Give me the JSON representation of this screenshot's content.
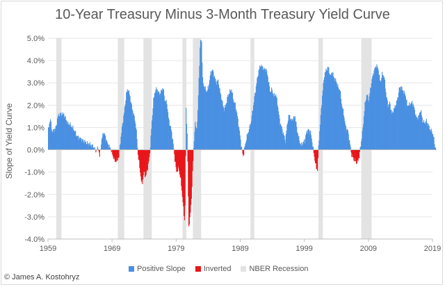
{
  "title": "10-Year Treasury Minus 3-Month Treasury Yield Curve",
  "copyright": "© James A. Kostohryz",
  "chart_data": {
    "type": "bar",
    "title": "10-Year Treasury Minus 3-Month Treasury Yield Curve",
    "xlabel": "",
    "ylabel": "Slope of Yield Curve",
    "xlim": [
      1959,
      2019
    ],
    "ylim": [
      -4.0,
      5.0
    ],
    "x_ticks": [
      "1959",
      "1969",
      "1979",
      "1989",
      "1999",
      "2009",
      "2019"
    ],
    "y_ticks": [
      "5.0%",
      "4.0%",
      "3.0%",
      "2.0%",
      "1.0%",
      "0.0%",
      "-1.0%",
      "-2.0%",
      "-3.0%",
      "-4.0%"
    ],
    "y_tick_values": [
      5,
      4,
      3,
      2,
      1,
      0,
      -1,
      -2,
      -3,
      -4
    ],
    "grid": true,
    "legend_position": "bottom",
    "colors": {
      "positive": "#4a90e2",
      "inverted": "#e8161b",
      "recession": "#e3e3e3"
    },
    "legend": [
      {
        "label": "Positive Slope",
        "series": "positive"
      },
      {
        "label": "Inverted",
        "series": "inverted"
      },
      {
        "label": "NBER Recession",
        "series": "recession"
      }
    ],
    "recessions": [
      [
        1960.3,
        1961.1
      ],
      [
        1969.9,
        1970.9
      ],
      [
        1973.9,
        1975.2
      ],
      [
        1980.0,
        1980.6
      ],
      [
        1981.6,
        1982.9
      ],
      [
        1990.6,
        1991.2
      ],
      [
        2001.2,
        2001.9
      ],
      [
        2007.9,
        2009.5
      ]
    ],
    "series_points": [
      [
        1959.0,
        0.9
      ],
      [
        1959.3,
        1.4
      ],
      [
        1959.6,
        0.8
      ],
      [
        1959.9,
        0.9
      ],
      [
        1960.2,
        1.0
      ],
      [
        1960.5,
        1.5
      ],
      [
        1960.8,
        1.6
      ],
      [
        1961.1,
        1.6
      ],
      [
        1961.4,
        1.6
      ],
      [
        1961.7,
        1.4
      ],
      [
        1962.0,
        1.2
      ],
      [
        1962.5,
        1.1
      ],
      [
        1963.0,
        0.9
      ],
      [
        1963.5,
        0.6
      ],
      [
        1964.0,
        0.5
      ],
      [
        1964.5,
        0.4
      ],
      [
        1965.0,
        0.3
      ],
      [
        1965.5,
        0.25
      ],
      [
        1966.0,
        0.15
      ],
      [
        1966.4,
        -0.05
      ],
      [
        1966.8,
        0.1
      ],
      [
        1967.0,
        -0.3
      ],
      [
        1967.3,
        0.4
      ],
      [
        1967.6,
        0.8
      ],
      [
        1967.9,
        0.6
      ],
      [
        1968.2,
        0.3
      ],
      [
        1968.5,
        0.15
      ],
      [
        1968.8,
        0.0
      ],
      [
        1969.1,
        -0.3
      ],
      [
        1969.4,
        -0.5
      ],
      [
        1969.7,
        -0.5
      ],
      [
        1970.0,
        -0.3
      ],
      [
        1970.3,
        0.5
      ],
      [
        1970.6,
        1.2
      ],
      [
        1970.9,
        1.8
      ],
      [
        1971.2,
        2.6
      ],
      [
        1971.5,
        2.7
      ],
      [
        1971.8,
        2.3
      ],
      [
        1972.1,
        1.8
      ],
      [
        1972.4,
        1.5
      ],
      [
        1972.7,
        1.0
      ],
      [
        1973.0,
        -0.2
      ],
      [
        1973.3,
        -0.9
      ],
      [
        1973.6,
        -1.6
      ],
      [
        1973.9,
        -1.0
      ],
      [
        1974.2,
        -1.2
      ],
      [
        1974.5,
        -0.8
      ],
      [
        1974.8,
        -0.3
      ],
      [
        1975.1,
        1.0
      ],
      [
        1975.4,
        2.2
      ],
      [
        1975.7,
        2.7
      ],
      [
        1976.0,
        2.7
      ],
      [
        1976.3,
        2.5
      ],
      [
        1976.6,
        2.6
      ],
      [
        1976.9,
        2.8
      ],
      [
        1977.2,
        2.2
      ],
      [
        1977.5,
        2.1
      ],
      [
        1977.8,
        1.3
      ],
      [
        1978.1,
        1.0
      ],
      [
        1978.4,
        0.5
      ],
      [
        1978.7,
        -0.3
      ],
      [
        1979.0,
        -1.0
      ],
      [
        1979.3,
        -0.8
      ],
      [
        1979.6,
        -1.2
      ],
      [
        1979.9,
        -2.0
      ],
      [
        1980.1,
        -2.7
      ],
      [
        1980.3,
        -3.3
      ],
      [
        1980.5,
        1.8
      ],
      [
        1980.7,
        0.5
      ],
      [
        1980.9,
        -3.5
      ],
      [
        1981.1,
        -3.0
      ],
      [
        1981.3,
        -2.4
      ],
      [
        1981.5,
        -1.0
      ],
      [
        1981.7,
        0.2
      ],
      [
        1981.9,
        1.2
      ],
      [
        1982.1,
        0.9
      ],
      [
        1982.3,
        1.4
      ],
      [
        1982.5,
        3.2
      ],
      [
        1982.7,
        4.8
      ],
      [
        1982.9,
        5.0
      ],
      [
        1983.1,
        3.0
      ],
      [
        1983.4,
        2.8
      ],
      [
        1983.7,
        2.6
      ],
      [
        1984.0,
        2.8
      ],
      [
        1984.3,
        3.4
      ],
      [
        1984.6,
        3.6
      ],
      [
        1984.9,
        3.3
      ],
      [
        1985.2,
        3.0
      ],
      [
        1985.5,
        3.1
      ],
      [
        1985.8,
        2.6
      ],
      [
        1986.1,
        2.2
      ],
      [
        1986.4,
        1.8
      ],
      [
        1986.7,
        2.0
      ],
      [
        1987.0,
        2.4
      ],
      [
        1987.3,
        2.6
      ],
      [
        1987.6,
        2.7
      ],
      [
        1987.9,
        2.2
      ],
      [
        1988.2,
        2.0
      ],
      [
        1988.5,
        1.5
      ],
      [
        1988.8,
        0.9
      ],
      [
        1989.1,
        0.2
      ],
      [
        1989.4,
        -0.3
      ],
      [
        1989.7,
        0.2
      ],
      [
        1990.0,
        0.6
      ],
      [
        1990.3,
        0.9
      ],
      [
        1990.6,
        1.2
      ],
      [
        1990.9,
        1.8
      ],
      [
        1991.2,
        2.4
      ],
      [
        1991.5,
        3.0
      ],
      [
        1991.8,
        3.5
      ],
      [
        1992.1,
        3.8
      ],
      [
        1992.4,
        3.7
      ],
      [
        1992.7,
        3.6
      ],
      [
        1993.0,
        3.6
      ],
      [
        1993.3,
        3.2
      ],
      [
        1993.6,
        2.6
      ],
      [
        1993.9,
        2.7
      ],
      [
        1994.2,
        2.4
      ],
      [
        1994.5,
        2.5
      ],
      [
        1994.8,
        2.0
      ],
      [
        1995.1,
        1.3
      ],
      [
        1995.4,
        1.0
      ],
      [
        1995.7,
        0.7
      ],
      [
        1996.0,
        0.4
      ],
      [
        1996.3,
        1.2
      ],
      [
        1996.6,
        1.6
      ],
      [
        1996.9,
        1.3
      ],
      [
        1997.2,
        1.4
      ],
      [
        1997.5,
        1.5
      ],
      [
        1997.8,
        0.9
      ],
      [
        1998.1,
        0.5
      ],
      [
        1998.4,
        0.2
      ],
      [
        1998.7,
        0.3
      ],
      [
        1999.0,
        0.4
      ],
      [
        1999.3,
        0.8
      ],
      [
        1999.6,
        0.9
      ],
      [
        1999.9,
        0.8
      ],
      [
        2000.2,
        0.3
      ],
      [
        2000.5,
        -0.3
      ],
      [
        2000.8,
        -0.8
      ],
      [
        2001.0,
        -0.9
      ],
      [
        2001.2,
        0.3
      ],
      [
        2001.5,
        1.5
      ],
      [
        2001.8,
        2.6
      ],
      [
        2002.1,
        3.4
      ],
      [
        2002.4,
        3.6
      ],
      [
        2002.7,
        3.7
      ],
      [
        2003.0,
        3.3
      ],
      [
        2003.3,
        3.5
      ],
      [
        2003.6,
        3.2
      ],
      [
        2003.9,
        3.1
      ],
      [
        2004.2,
        2.8
      ],
      [
        2004.5,
        2.7
      ],
      [
        2004.8,
        2.0
      ],
      [
        2005.1,
        1.6
      ],
      [
        2005.4,
        1.0
      ],
      [
        2005.7,
        0.9
      ],
      [
        2006.0,
        0.4
      ],
      [
        2006.3,
        -0.2
      ],
      [
        2006.6,
        -0.4
      ],
      [
        2006.9,
        -0.5
      ],
      [
        2007.2,
        -0.6
      ],
      [
        2007.5,
        -0.3
      ],
      [
        2007.8,
        0.3
      ],
      [
        2008.1,
        1.0
      ],
      [
        2008.4,
        2.0
      ],
      [
        2008.7,
        2.5
      ],
      [
        2009.0,
        2.2
      ],
      [
        2009.3,
        2.8
      ],
      [
        2009.6,
        3.3
      ],
      [
        2009.9,
        3.6
      ],
      [
        2010.2,
        3.8
      ],
      [
        2010.5,
        3.6
      ],
      [
        2010.8,
        3.0
      ],
      [
        2011.1,
        3.4
      ],
      [
        2011.4,
        3.3
      ],
      [
        2011.7,
        2.5
      ],
      [
        2012.0,
        2.0
      ],
      [
        2012.3,
        2.1
      ],
      [
        2012.6,
        1.6
      ],
      [
        2012.9,
        1.8
      ],
      [
        2013.2,
        2.0
      ],
      [
        2013.5,
        2.3
      ],
      [
        2013.8,
        2.8
      ],
      [
        2014.1,
        2.8
      ],
      [
        2014.4,
        2.6
      ],
      [
        2014.7,
        2.5
      ],
      [
        2015.0,
        2.0
      ],
      [
        2015.3,
        2.0
      ],
      [
        2015.6,
        2.1
      ],
      [
        2015.9,
        2.1
      ],
      [
        2016.2,
        1.7
      ],
      [
        2016.5,
        1.4
      ],
      [
        2016.8,
        1.5
      ],
      [
        2017.1,
        1.8
      ],
      [
        2017.4,
        1.3
      ],
      [
        2017.7,
        1.2
      ],
      [
        2018.0,
        1.3
      ],
      [
        2018.3,
        1.1
      ],
      [
        2018.6,
        0.9
      ],
      [
        2018.9,
        0.8
      ],
      [
        2019.1,
        0.6
      ],
      [
        2019.3,
        0.2
      ],
      [
        2019.5,
        0.0
      ]
    ]
  }
}
